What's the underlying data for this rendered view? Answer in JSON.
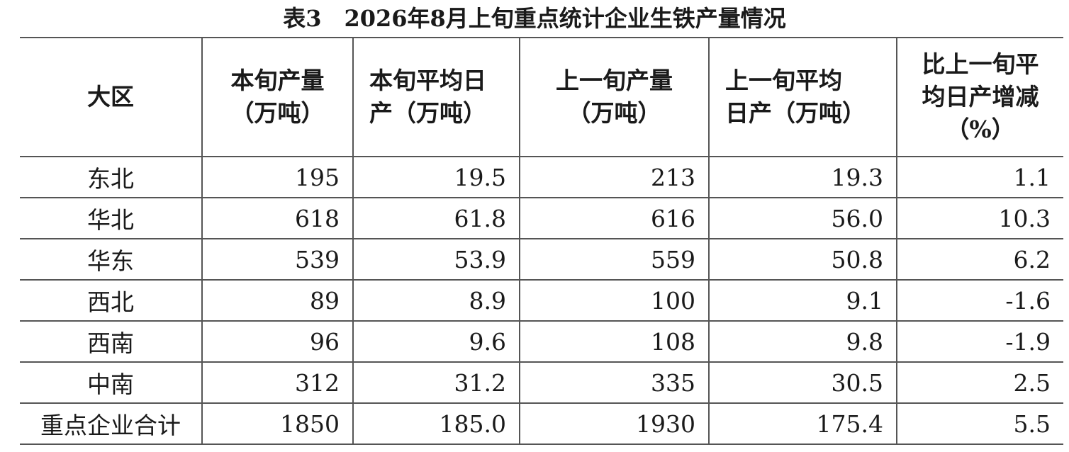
{
  "title": "表3　2026年8月上旬重点统计企业生铁产量情况",
  "table": {
    "header": [
      [
        "大区"
      ],
      [
        "本旬产量",
        "（万吨）"
      ],
      [
        "本旬平均日",
        "产（万吨）"
      ],
      [
        "上一旬产量",
        "（万吨）"
      ],
      [
        "上一旬平均",
        "日产（万吨）"
      ],
      [
        "比上一旬平",
        "均日产增减",
        "（%）"
      ]
    ],
    "rows": [
      [
        "东北",
        "195",
        "19.5",
        "213",
        "19.3",
        "1.1"
      ],
      [
        "华北",
        "618",
        "61.8",
        "616",
        "56.0",
        "10.3"
      ],
      [
        "华东",
        "539",
        "53.9",
        "559",
        "50.8",
        "6.2"
      ],
      [
        "西北",
        "89",
        "8.9",
        "100",
        "9.1",
        "-1.6"
      ],
      [
        "西南",
        "96",
        "9.6",
        "108",
        "9.8",
        "-1.9"
      ],
      [
        "中南",
        "312",
        "31.2",
        "335",
        "30.5",
        "2.5"
      ],
      [
        "重点企业合计",
        "1850",
        "185.0",
        "1930",
        "175.4",
        "5.5"
      ]
    ]
  }
}
